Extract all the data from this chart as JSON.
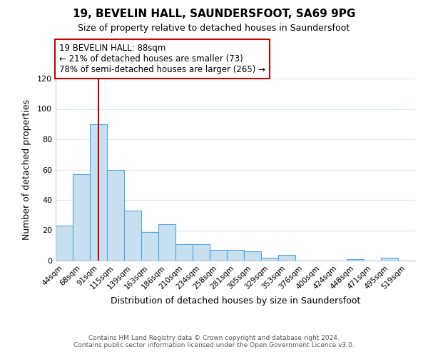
{
  "title": "19, BEVELIN HALL, SAUNDERSFOOT, SA69 9PG",
  "subtitle": "Size of property relative to detached houses in Saundersfoot",
  "xlabel": "Distribution of detached houses by size in Saundersfoot",
  "ylabel": "Number of detached properties",
  "bin_labels": [
    "44sqm",
    "68sqm",
    "91sqm",
    "115sqm",
    "139sqm",
    "163sqm",
    "186sqm",
    "210sqm",
    "234sqm",
    "258sqm",
    "281sqm",
    "305sqm",
    "329sqm",
    "353sqm",
    "376sqm",
    "400sqm",
    "424sqm",
    "448sqm",
    "471sqm",
    "495sqm",
    "519sqm"
  ],
  "bar_heights": [
    23,
    57,
    90,
    60,
    33,
    19,
    24,
    11,
    11,
    7,
    7,
    6,
    2,
    4,
    0,
    0,
    0,
    1,
    0,
    2,
    0
  ],
  "bar_color": "#c8dff0",
  "bar_edge_color": "#5ba3d9",
  "vline_x": 2,
  "vline_color": "#cc0000",
  "annotation_title": "19 BEVELIN HALL: 88sqm",
  "annotation_line1": "← 21% of detached houses are smaller (73)",
  "annotation_line2": "78% of semi-detached houses are larger (265) →",
  "annotation_box_color": "#ffffff",
  "annotation_box_edge_color": "#cc0000",
  "ylim": [
    0,
    120
  ],
  "yticks": [
    0,
    20,
    40,
    60,
    80,
    100,
    120
  ],
  "footer1": "Contains HM Land Registry data © Crown copyright and database right 2024.",
  "footer2": "Contains public sector information licensed under the Open Government Licence v3.0.",
  "background_color": "#ffffff",
  "grid_color": "#dce8f0"
}
